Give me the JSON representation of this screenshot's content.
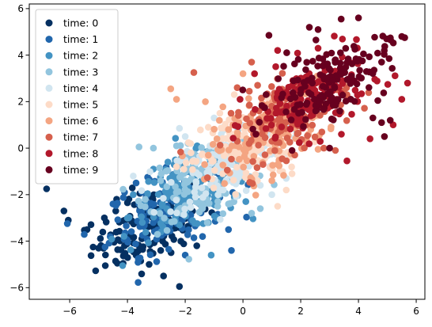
{
  "chart_data": {
    "type": "scatter",
    "title": "",
    "xlabel": "",
    "ylabel": "",
    "xlim": [
      -7.4,
      6.3
    ],
    "ylim": [
      -6.5,
      6.2
    ],
    "xticks": [
      -6,
      -4,
      -2,
      0,
      2,
      4,
      6
    ],
    "yticks": [
      -6,
      -4,
      -2,
      0,
      2,
      4,
      6
    ],
    "xtick_labels": [
      "−6",
      "−4",
      "−2",
      "0",
      "2",
      "4",
      "6"
    ],
    "ytick_labels": [
      "−6",
      "−4",
      "−2",
      "0",
      "2",
      "4",
      "6"
    ],
    "grid": false,
    "legend_position": "upper-left",
    "series": [
      {
        "name": "time: 0",
        "color": "#053061",
        "center": [
          -3.2,
          -3.3
        ],
        "spread": [
          1.0,
          0.75
        ],
        "count": 150,
        "points": [
          [
            -6.8,
            -1.75
          ],
          [
            -6.2,
            -2.7
          ],
          [
            -6.05,
            -3.1
          ],
          [
            -5.4,
            -3.5
          ],
          [
            -5.0,
            -4.3
          ],
          [
            -4.8,
            -3.0
          ],
          [
            -4.35,
            -4.95
          ],
          [
            -4.15,
            -4.95
          ],
          [
            -4.1,
            -4.2
          ],
          [
            -3.7,
            -4.6
          ],
          [
            -3.25,
            -5.0
          ],
          [
            -2.85,
            -4.4
          ],
          [
            -2.75,
            -5.5
          ],
          [
            -2.2,
            -5.95
          ],
          [
            -2.15,
            -4.0
          ],
          [
            -3.5,
            -3.9
          ],
          [
            -4.0,
            -2.35
          ],
          [
            -2.6,
            -2.8
          ],
          [
            -3.1,
            -2.6
          ],
          [
            -1.6,
            -4.2
          ]
        ]
      },
      {
        "name": "time: 1",
        "color": "#2166ac",
        "center": [
          -2.6,
          -2.6
        ],
        "spread": [
          1.0,
          0.8
        ],
        "count": 150,
        "points": [
          [
            -4.5,
            -2.4
          ],
          [
            -4.1,
            -1.9
          ],
          [
            -3.7,
            -1.5
          ],
          [
            -2.3,
            -1.6
          ],
          [
            -1.4,
            -3.8
          ],
          [
            -0.5,
            -3.5
          ],
          [
            -0.4,
            -4.4
          ],
          [
            -2.0,
            -4.6
          ],
          [
            -3.3,
            -1.25
          ],
          [
            -1.0,
            -2.3
          ],
          [
            -2.8,
            -3.6
          ],
          [
            -1.8,
            -3.1
          ]
        ]
      },
      {
        "name": "time: 2",
        "color": "#4393c3",
        "center": [
          -1.9,
          -2.0
        ],
        "spread": [
          1.0,
          0.8
        ],
        "count": 150,
        "points": [
          [
            -3.1,
            -0.9
          ],
          [
            -2.6,
            -0.6
          ],
          [
            -1.2,
            -3.2
          ],
          [
            -1.1,
            -4.6
          ],
          [
            -0.9,
            -3.0
          ],
          [
            0.1,
            -2.3
          ],
          [
            -0.3,
            -2.1
          ],
          [
            -3.8,
            -2.0
          ],
          [
            -2.2,
            -3.3
          ]
        ]
      },
      {
        "name": "time: 3",
        "color": "#92c5de",
        "center": [
          -1.3,
          -1.3
        ],
        "spread": [
          1.0,
          0.8
        ],
        "count": 150,
        "points": [
          [
            -3.6,
            0.05
          ],
          [
            -3.1,
            0.0
          ],
          [
            -2.85,
            -1.4
          ],
          [
            -2.3,
            0.1
          ],
          [
            -1.9,
            0.2
          ],
          [
            0.3,
            -2.8
          ],
          [
            0.6,
            -2.6
          ],
          [
            -0.5,
            -2.4
          ],
          [
            -1.4,
            -2.6
          ]
        ]
      },
      {
        "name": "time: 4",
        "color": "#d1e5f0",
        "center": [
          -0.6,
          -0.7
        ],
        "spread": [
          1.0,
          0.8
        ],
        "count": 150,
        "points": [
          [
            -2.2,
            0.85
          ],
          [
            -2.0,
            0.5
          ],
          [
            -1.0,
            1.3
          ],
          [
            -1.2,
            -0.3
          ],
          [
            -0.5,
            0.45
          ],
          [
            0.6,
            -1.6
          ],
          [
            1.0,
            -2.0
          ],
          [
            1.5,
            -1.3
          ],
          [
            -3.8,
            -1.2
          ],
          [
            0.2,
            -0.3
          ]
        ]
      },
      {
        "name": "time: 5",
        "color": "#fddbc7",
        "center": [
          0.2,
          0.0
        ],
        "spread": [
          1.0,
          0.8
        ],
        "count": 150,
        "points": [
          [
            -1.2,
            0.9
          ],
          [
            -0.8,
            1.5
          ],
          [
            -0.3,
            2.3
          ],
          [
            0.5,
            -1.4
          ],
          [
            1.2,
            -2.5
          ],
          [
            1.5,
            -1.8
          ],
          [
            1.7,
            -1.1
          ],
          [
            -1.8,
            -0.2
          ],
          [
            -2.3,
            -0.8
          ],
          [
            -0.7,
            -1.1
          ]
        ]
      },
      {
        "name": "time: 6",
        "color": "#f4a582",
        "center": [
          0.9,
          0.7
        ],
        "spread": [
          1.0,
          0.8
        ],
        "count": 150,
        "points": [
          [
            -2.5,
            2.55
          ],
          [
            -2.3,
            2.1
          ],
          [
            -1.3,
            2.0
          ],
          [
            0.0,
            3.2
          ],
          [
            -0.5,
            0.8
          ],
          [
            1.0,
            -1.4
          ],
          [
            1.2,
            -0.7
          ],
          [
            -1.2,
            -0.3
          ],
          [
            -0.9,
            0.4
          ],
          [
            2.6,
            -0.05
          ],
          [
            2.2,
            0.35
          ],
          [
            1.2,
            1.0
          ]
        ]
      },
      {
        "name": "time: 7",
        "color": "#d6604d",
        "center": [
          1.6,
          1.4
        ],
        "spread": [
          1.0,
          0.8
        ],
        "count": 150,
        "points": [
          [
            -1.7,
            3.25
          ],
          [
            -0.2,
            2.6
          ],
          [
            0.3,
            3.7
          ],
          [
            0.6,
            1.1
          ],
          [
            1.0,
            0.3
          ],
          [
            2.8,
            0.0
          ],
          [
            3.2,
            -0.1
          ],
          [
            3.6,
            2.3
          ],
          [
            1.9,
            2.6
          ],
          [
            1.4,
            1.7
          ]
        ]
      },
      {
        "name": "time: 8",
        "color": "#b2182b",
        "center": [
          2.3,
          2.1
        ],
        "spread": [
          1.0,
          0.8
        ],
        "count": 150,
        "points": [
          [
            -0.1,
            2.1
          ],
          [
            0.4,
            3.2
          ],
          [
            1.2,
            4.2
          ],
          [
            3.6,
            -0.55
          ],
          [
            4.4,
            0.4
          ],
          [
            5.2,
            1.0
          ],
          [
            5.5,
            2.1
          ],
          [
            5.7,
            2.8
          ],
          [
            2.0,
            1.1
          ],
          [
            2.6,
            2.3
          ]
        ]
      },
      {
        "name": "time: 9",
        "color": "#67001f",
        "center": [
          3.0,
          2.9
        ],
        "spread": [
          1.0,
          0.75
        ],
        "count": 150,
        "points": [
          [
            0.9,
            4.85
          ],
          [
            2.3,
            5.2
          ],
          [
            2.6,
            5.1
          ],
          [
            3.4,
            5.55
          ],
          [
            4.0,
            5.6
          ],
          [
            5.5,
            4.8
          ],
          [
            5.6,
            4.75
          ],
          [
            4.8,
            3.7
          ],
          [
            4.5,
            1.3
          ],
          [
            4.8,
            1.1
          ],
          [
            5.1,
            1.2
          ],
          [
            4.9,
            0.5
          ],
          [
            3.0,
            0.0
          ],
          [
            1.7,
            -0.1
          ],
          [
            0.8,
            2.3
          ],
          [
            3.2,
            3.8
          ],
          [
            2.4,
            2.8
          ]
        ]
      }
    ]
  }
}
